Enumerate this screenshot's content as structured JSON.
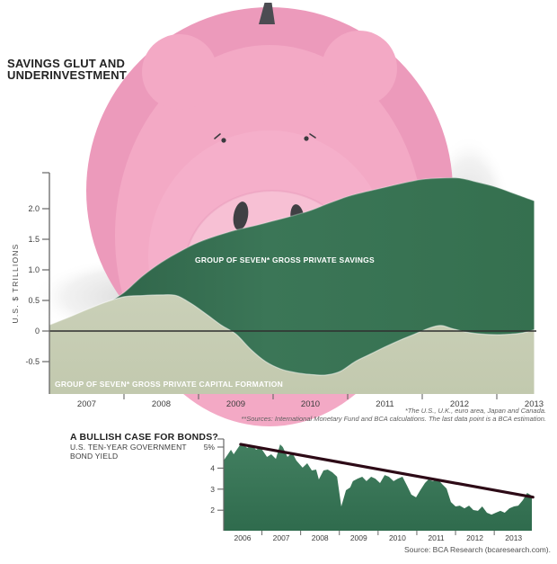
{
  "page": {
    "background": "#ffffff",
    "title_line1": "SAVINGS GLUT AND",
    "title_line2": "UNDERINVESTMENT",
    "footnotes": [
      "*The U.S., U.K., euro area, Japan and Canada.",
      "**Sources: International Monetary Fund and BCA calculations. The last data point is a BCA estimation."
    ],
    "source": "Source: BCA Research (bcaresearch.com)."
  },
  "colors": {
    "pig_pink": "#f3a9c5",
    "pig_rim_pink": "#ec9abb",
    "pig_snout_pink": "#f7c0d4",
    "pig_features_dark": "#46464a",
    "savings_green": "#3b7657",
    "formation_sage": "#c7cdb3",
    "bond_green": "#3c7a58",
    "trendline_maroon": "#2d0a16",
    "zero_line": "#2f2f2f",
    "axis_gray": "#666666",
    "title_dark": "#232323",
    "footnote_gray": "#5f5f5f"
  },
  "chart_data": [
    {
      "type": "area",
      "title": "SAVINGS GLUT AND UNDERINVESTMENT",
      "ylabel": "U.S. $ TRILLIONS",
      "ylim": [
        -1.0,
        2.6
      ],
      "xlim": [
        2006.5,
        2013.0
      ],
      "grid": false,
      "legend_position": "inside-areas",
      "yticks": [
        2.0,
        1.5,
        1.0,
        0.5,
        0,
        -0.5
      ],
      "ytick_labels": [
        "2.0",
        "1.5",
        "1.0",
        "0.5",
        "0",
        "-0.5"
      ],
      "x_labels": [
        "2007",
        "2008",
        "2009",
        "2010",
        "2011",
        "2012",
        "2013"
      ],
      "series": [
        {
          "name": "GROUP OF SEVEN* GROSS PRIVATE SAVINGS",
          "color": "#3b7657",
          "points": [
            [
              2006.5,
              0.1
            ],
            [
              2006.75,
              0.17
            ],
            [
              2007,
              0.28
            ],
            [
              2007.25,
              0.44
            ],
            [
              2007.5,
              0.63
            ],
            [
              2007.75,
              0.9
            ],
            [
              2008,
              1.12
            ],
            [
              2008.25,
              1.3
            ],
            [
              2008.5,
              1.45
            ],
            [
              2008.75,
              1.56
            ],
            [
              2009,
              1.65
            ],
            [
              2009.25,
              1.72
            ],
            [
              2009.5,
              1.8
            ],
            [
              2009.75,
              1.88
            ],
            [
              2010,
              1.97
            ],
            [
              2010.25,
              2.09
            ],
            [
              2010.5,
              2.2
            ],
            [
              2010.75,
              2.28
            ],
            [
              2011,
              2.35
            ],
            [
              2011.25,
              2.42
            ],
            [
              2011.5,
              2.48
            ],
            [
              2011.75,
              2.5
            ],
            [
              2012,
              2.5
            ],
            [
              2012.25,
              2.43
            ],
            [
              2012.5,
              2.35
            ],
            [
              2012.75,
              2.24
            ],
            [
              2013,
              2.13
            ]
          ]
        },
        {
          "name": "GROUP OF SEVEN* GROSS PRIVATE CAPITAL FORMATION",
          "color": "#c7cdb3",
          "points": [
            [
              2006.5,
              0.1
            ],
            [
              2006.75,
              0.22
            ],
            [
              2007,
              0.35
            ],
            [
              2007.25,
              0.47
            ],
            [
              2007.5,
              0.56
            ],
            [
              2007.75,
              0.58
            ],
            [
              2008,
              0.59
            ],
            [
              2008.2,
              0.58
            ],
            [
              2008.4,
              0.45
            ],
            [
              2008.6,
              0.28
            ],
            [
              2008.8,
              0.1
            ],
            [
              2009,
              -0.05
            ],
            [
              2009.2,
              -0.3
            ],
            [
              2009.4,
              -0.5
            ],
            [
              2009.6,
              -0.62
            ],
            [
              2009.8,
              -0.68
            ],
            [
              2010,
              -0.71
            ],
            [
              2010.2,
              -0.72
            ],
            [
              2010.4,
              -0.66
            ],
            [
              2010.6,
              -0.5
            ],
            [
              2010.8,
              -0.38
            ],
            [
              2011,
              -0.26
            ],
            [
              2011.2,
              -0.15
            ],
            [
              2011.4,
              -0.05
            ],
            [
              2011.6,
              0.05
            ],
            [
              2011.75,
              0.09
            ],
            [
              2011.9,
              0.04
            ],
            [
              2012.1,
              -0.02
            ],
            [
              2012.3,
              -0.05
            ],
            [
              2012.5,
              -0.06
            ],
            [
              2012.7,
              -0.05
            ],
            [
              2012.85,
              -0.03
            ],
            [
              2013,
              0.02
            ]
          ]
        }
      ]
    },
    {
      "type": "area",
      "title": "A BULLISH CASE FOR BONDS?",
      "subtitle_lines": [
        "U.S. TEN-YEAR GOVERNMENT",
        "BOND YIELD"
      ],
      "ylim": [
        1.0,
        5.5
      ],
      "xlim": [
        2005.5,
        2013.5
      ],
      "grid": false,
      "yticks": [
        5,
        4,
        3,
        2
      ],
      "ytick_labels": [
        "5%",
        "4",
        "3",
        "2"
      ],
      "x_labels": [
        "2006",
        "2007",
        "2008",
        "2009",
        "2010",
        "2011",
        "2012",
        "2013"
      ],
      "series": [
        {
          "name": "U.S. ten-year government bond yield",
          "color": "#3c7a58",
          "points": [
            [
              2005.51,
              4.36
            ],
            [
              2005.7,
              4.87
            ],
            [
              2005.77,
              4.66
            ],
            [
              2005.93,
              5.09
            ],
            [
              2006.0,
              5.13
            ],
            [
              2006.12,
              4.96
            ],
            [
              2006.23,
              5.09
            ],
            [
              2006.35,
              4.87
            ],
            [
              2006.46,
              5.0
            ],
            [
              2006.63,
              4.53
            ],
            [
              2006.74,
              4.66
            ],
            [
              2006.86,
              4.44
            ],
            [
              2006.97,
              5.13
            ],
            [
              2007.04,
              5.0
            ],
            [
              2007.16,
              4.53
            ],
            [
              2007.28,
              4.74
            ],
            [
              2007.39,
              4.36
            ],
            [
              2007.55,
              4.02
            ],
            [
              2007.67,
              4.23
            ],
            [
              2007.79,
              3.89
            ],
            [
              2007.9,
              3.93
            ],
            [
              2007.97,
              3.46
            ],
            [
              2008.09,
              3.89
            ],
            [
              2008.2,
              3.93
            ],
            [
              2008.32,
              3.8
            ],
            [
              2008.44,
              3.59
            ],
            [
              2008.55,
              2.18
            ],
            [
              2008.67,
              2.95
            ],
            [
              2008.78,
              3.08
            ],
            [
              2008.85,
              3.38
            ],
            [
              2008.97,
              3.5
            ],
            [
              2009.09,
              3.59
            ],
            [
              2009.2,
              3.38
            ],
            [
              2009.32,
              3.59
            ],
            [
              2009.43,
              3.5
            ],
            [
              2009.55,
              3.29
            ],
            [
              2009.67,
              3.67
            ],
            [
              2009.78,
              3.59
            ],
            [
              2009.9,
              3.38
            ],
            [
              2010.01,
              3.5
            ],
            [
              2010.13,
              3.59
            ],
            [
              2010.25,
              3.16
            ],
            [
              2010.36,
              2.74
            ],
            [
              2010.48,
              2.61
            ],
            [
              2010.59,
              2.95
            ],
            [
              2010.71,
              3.29
            ],
            [
              2010.8,
              3.46
            ],
            [
              2010.92,
              3.38
            ],
            [
              2011.03,
              3.5
            ],
            [
              2011.15,
              3.25
            ],
            [
              2011.27,
              3.03
            ],
            [
              2011.38,
              2.39
            ],
            [
              2011.5,
              2.18
            ],
            [
              2011.61,
              2.22
            ],
            [
              2011.73,
              2.09
            ],
            [
              2011.85,
              2.22
            ],
            [
              2011.96,
              2.01
            ],
            [
              2012.08,
              1.97
            ],
            [
              2012.19,
              2.18
            ],
            [
              2012.31,
              1.88
            ],
            [
              2012.43,
              1.79
            ],
            [
              2012.54,
              1.88
            ],
            [
              2012.66,
              1.97
            ],
            [
              2012.77,
              1.88
            ],
            [
              2012.89,
              2.09
            ],
            [
              2013.01,
              2.18
            ],
            [
              2013.12,
              2.22
            ],
            [
              2013.24,
              2.48
            ],
            [
              2013.35,
              2.82
            ],
            [
              2013.47,
              2.69
            ]
          ]
        }
      ],
      "trendline": {
        "color": "#2d0a16",
        "points": [
          [
            2005.95,
            5.13
          ],
          [
            2013.5,
            2.62
          ]
        ]
      }
    }
  ]
}
